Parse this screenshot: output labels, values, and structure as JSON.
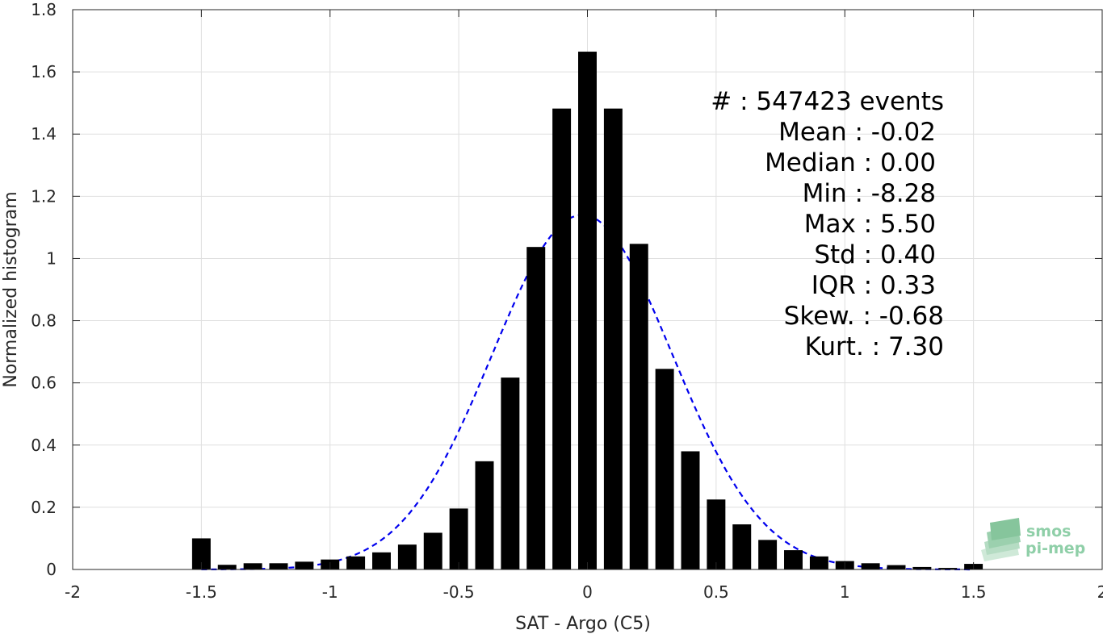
{
  "chart_data": {
    "type": "bar",
    "xlabel": "SAT - Argo (C5)",
    "ylabel": "Normalized histogram",
    "xlim": [
      -2,
      2
    ],
    "ylim": [
      0,
      1.8
    ],
    "grid": true,
    "x_ticks": [
      "-2",
      "-1.5",
      "-1",
      "-0.5",
      "0",
      "0.5",
      "1",
      "1.5",
      "2"
    ],
    "y_ticks": [
      "0",
      "0.2",
      "0.4",
      "0.6",
      "0.8",
      "1",
      "1.2",
      "1.4",
      "1.6",
      "1.8"
    ],
    "bar_color": "#000000",
    "fit_color": "#0000ee",
    "series": [
      {
        "type": "bar",
        "x": [
          -1.5,
          -1.4,
          -1.3,
          -1.2,
          -1.1,
          -1.0,
          -0.9,
          -0.8,
          -0.7,
          -0.6,
          -0.5,
          -0.4,
          -0.3,
          -0.2,
          -0.1,
          0.0,
          0.1,
          0.2,
          0.3,
          0.4,
          0.5,
          0.6,
          0.7,
          0.8,
          0.9,
          1.0,
          1.1,
          1.2,
          1.3,
          1.4,
          1.5
        ],
        "values": [
          0.1,
          0.015,
          0.02,
          0.02,
          0.025,
          0.032,
          0.042,
          0.055,
          0.08,
          0.118,
          0.196,
          0.348,
          0.617,
          1.037,
          1.482,
          1.665,
          1.482,
          1.047,
          0.645,
          0.38,
          0.225,
          0.145,
          0.095,
          0.062,
          0.042,
          0.027,
          0.02,
          0.014,
          0.008,
          0.005,
          0.018
        ]
      },
      {
        "type": "line",
        "style": "dashed",
        "distribution": "normal",
        "mean": -0.02,
        "std": 0.35,
        "x_range": [
          -1.5,
          1.5
        ],
        "peak": 1.14
      }
    ],
    "stats": [
      "#  : 547423 events",
      "Mean : -0.02",
      "Median : 0.00",
      "Min : -8.28",
      "Max : 5.50",
      "Std : 0.40",
      "IQR : 0.33",
      "Skew. : -0.68",
      "Kurt. : 7.30"
    ]
  },
  "logo": {
    "line1": "smos",
    "line2": "pi-mep"
  }
}
